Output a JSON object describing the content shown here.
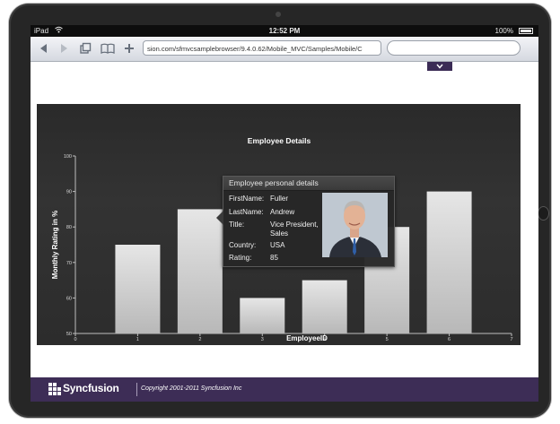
{
  "statusbar": {
    "carrier": "iPad",
    "time": "12:52 PM",
    "battery": "100%"
  },
  "browser": {
    "url": "sion.com/sfmvcsamplebrowser/9.4.0.62/Mobile_MVC/Samples/Mobile/C",
    "search_placeholder": ""
  },
  "icons": {
    "back": "arrow-left-icon",
    "forward": "arrow-right-icon",
    "tabs": "pages-icon",
    "bookmarks": "book-icon",
    "add": "plus-icon",
    "wifi": "wifi-icon",
    "battery": "battery-icon",
    "dropdown": "chevron-down-icon"
  },
  "chart_data": {
    "type": "bar",
    "title": "Employee Details",
    "xlabel": "EmployeeID",
    "ylabel": "Monthly Rating in %",
    "x": [
      1,
      2,
      3,
      4,
      5,
      6
    ],
    "values": [
      75,
      85,
      60,
      65,
      80,
      90
    ],
    "xlim": [
      0,
      7
    ],
    "ylim": [
      50,
      100
    ],
    "xticks": [
      "0",
      "1",
      "2",
      "3",
      "4",
      "5",
      "6",
      "7"
    ],
    "yticks": [
      "50",
      "60",
      "70",
      "80",
      "90",
      "100"
    ],
    "grid": false,
    "bar_color": "#c9c9c9",
    "background": "#2f2f2f"
  },
  "tooltip": {
    "header": "Employee personal details",
    "rows": [
      {
        "label": "FirstName:",
        "value": "Fuller"
      },
      {
        "label": "LastName:",
        "value": "Andrew"
      },
      {
        "label": "Title:",
        "value": "Vice President, Sales"
      },
      {
        "label": "Country:",
        "value": "USA"
      },
      {
        "label": "Rating:",
        "value": "85"
      }
    ]
  },
  "footer": {
    "brand": "Syncfusion",
    "copyright": "Copyright 2001-2011 Syncfusion Inc",
    "bg_color": "#3d2d56"
  }
}
